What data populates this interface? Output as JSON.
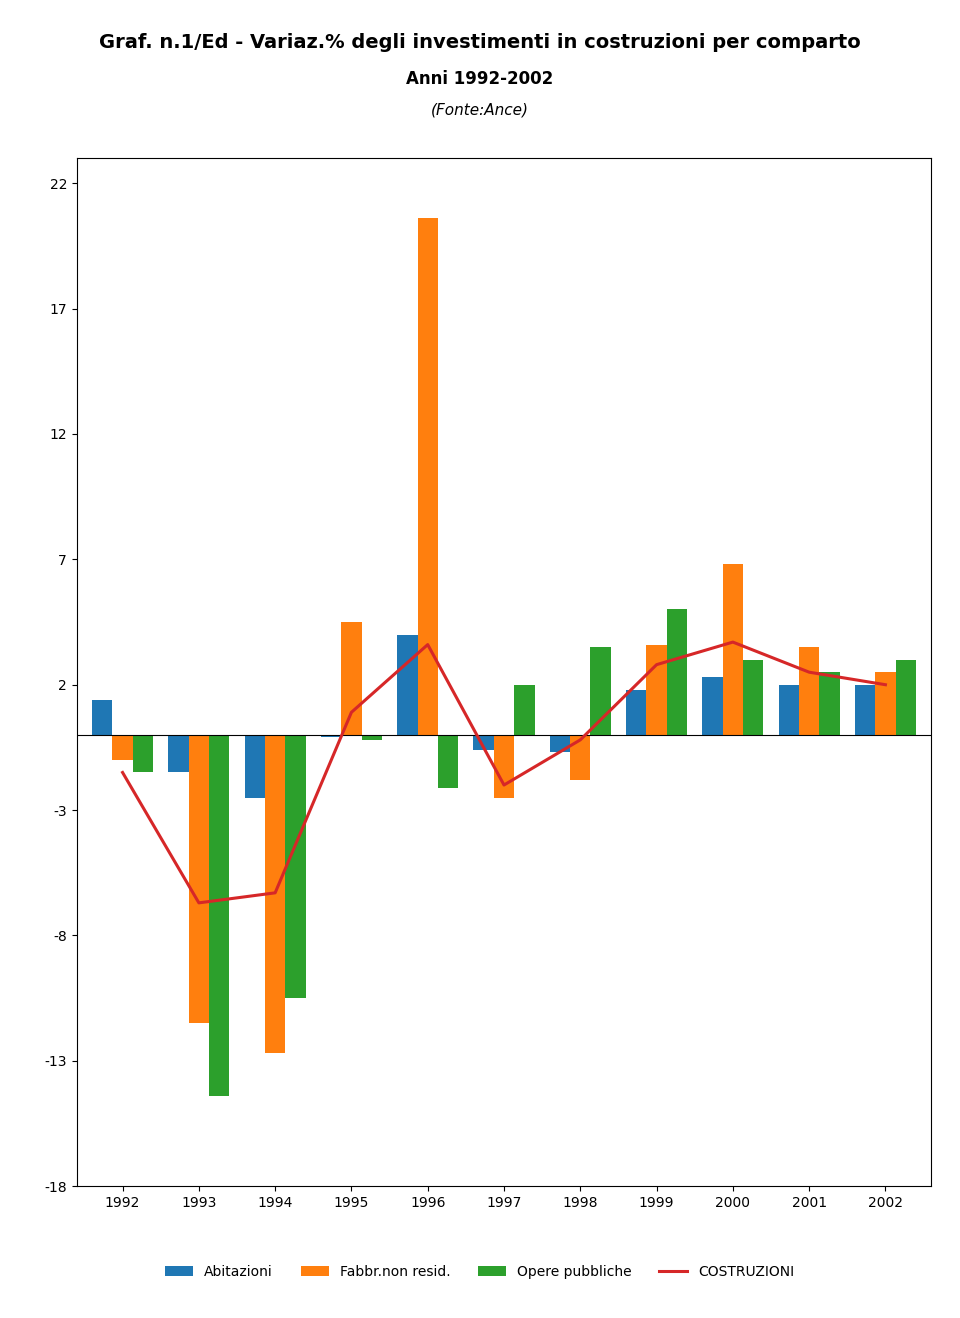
{
  "chart_data": {
    "type": "bar",
    "title": "Graf. n.1/Ed - Variaz.% degli investimenti in costruzioni per comparto",
    "subtitle": "Anni 1992-2002",
    "annotations": [
      "(Fonte:Ance)"
    ],
    "categories": [
      "1992",
      "1993",
      "1994",
      "1995",
      "1996",
      "1997",
      "1998",
      "1999",
      "2000",
      "2001",
      "2002"
    ],
    "series": [
      {
        "name": "Abitazioni",
        "type": "bar",
        "values": [
          1.4,
          -1.5,
          -2.5,
          -0.1,
          4.0,
          -0.6,
          -0.7,
          1.8,
          2.3,
          2.0,
          2.0
        ]
      },
      {
        "name": "Fabbr.non resid.",
        "type": "bar",
        "values": [
          -1.0,
          -11.5,
          -12.7,
          4.5,
          20.6,
          -2.5,
          -1.8,
          3.6,
          6.8,
          3.5,
          2.5
        ]
      },
      {
        "name": "Opere pubbliche",
        "type": "bar",
        "values": [
          -1.5,
          -14.4,
          -10.5,
          -0.2,
          -2.1,
          2.0,
          3.5,
          5.0,
          3.0,
          2.5,
          3.0
        ]
      },
      {
        "name": "COSTRUZIONI",
        "type": "line",
        "values": [
          -1.5,
          -6.7,
          -6.3,
          0.9,
          3.6,
          -2.0,
          -0.2,
          2.8,
          3.7,
          2.5,
          2.0
        ]
      }
    ],
    "ylim": [
      -18,
      23
    ],
    "yticks": [
      -18,
      -13,
      -8,
      -3,
      2,
      7,
      12,
      17,
      22
    ],
    "grid": false,
    "legend": "lower center"
  }
}
